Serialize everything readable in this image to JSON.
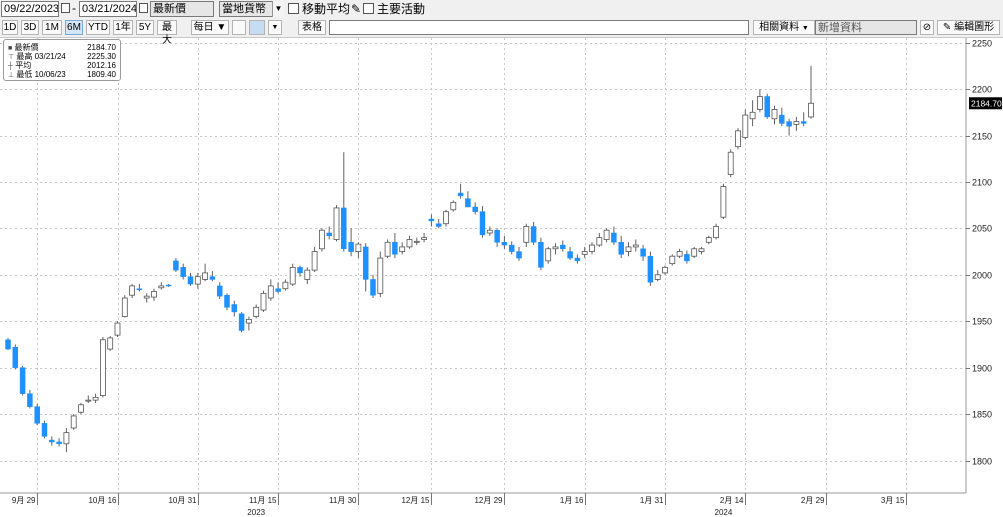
{
  "toolbar": {
    "start_date": "09/22/2023",
    "end_date": "03/21/2024",
    "price_field": "最新價",
    "currency": "當地貨幣",
    "moving_avg_label": "移動平均",
    "key_events_label": "主要活動",
    "periods": [
      {
        "label": "1D",
        "selected": false
      },
      {
        "label": "3D",
        "selected": false
      },
      {
        "label": "1M",
        "selected": false
      },
      {
        "label": "6M",
        "selected": true
      },
      {
        "label": "YTD",
        "selected": false
      },
      {
        "label": "1年",
        "selected": false
      },
      {
        "label": "5Y",
        "selected": false
      },
      {
        "label": "最大",
        "selected": false
      }
    ],
    "frequency": "每日 ▼",
    "table_label": "表格",
    "related_label": "相關資料",
    "news_label": "新增資料",
    "edit_label": "編輯圖形"
  },
  "legend": {
    "rows": [
      {
        "icon": "last-price-icon",
        "label": "最新價",
        "date": "",
        "value": "2184.70"
      },
      {
        "icon": "high-icon",
        "label": "最高",
        "date": "03/21/24",
        "value": "2225.30"
      },
      {
        "icon": "average-icon",
        "label": "平均",
        "date": "",
        "value": "2012.16"
      },
      {
        "icon": "low-icon",
        "label": "最低",
        "date": "10/06/23",
        "value": "1809.40"
      }
    ]
  },
  "chart_data": {
    "type": "candlestick",
    "ylim": [
      1765,
      2255
    ],
    "y_ticks": [
      1800,
      1850,
      1900,
      1950,
      2000,
      2050,
      2100,
      2150,
      2200,
      2250
    ],
    "last_price_label": "2184.70",
    "x_ticks": [
      {
        "index": 4,
        "label": "9月 29"
      },
      {
        "index": 15,
        "label": "10月 16"
      },
      {
        "index": 26,
        "label": "10月 31"
      },
      {
        "index": 37,
        "label": "11月 15"
      },
      {
        "index": 48,
        "label": "11月 30"
      },
      {
        "index": 58,
        "label": "12月 15"
      },
      {
        "index": 68,
        "label": "12月 29"
      },
      {
        "index": 79,
        "label": "1月 16"
      },
      {
        "index": 90,
        "label": "1月 31"
      },
      {
        "index": 101,
        "label": "2月 14"
      },
      {
        "index": 112,
        "label": "2月 29"
      },
      {
        "index": 123,
        "label": "3月 15"
      }
    ],
    "year_labels": [
      {
        "index": 34,
        "label": "2023"
      },
      {
        "index": 98,
        "label": "2024"
      }
    ],
    "colors": {
      "up": "#ffffff",
      "down": "#1e90ff",
      "wick": "#606060",
      "grid": "#c8c8c8",
      "last_price_bg": "#000000"
    },
    "candles": [
      [
        1930,
        1932,
        1919,
        1920
      ],
      [
        1922,
        1925,
        1898,
        1900
      ],
      [
        1900,
        1902,
        1870,
        1872
      ],
      [
        1872,
        1876,
        1856,
        1858
      ],
      [
        1858,
        1861,
        1838,
        1840
      ],
      [
        1840,
        1843,
        1824,
        1826
      ],
      [
        1822,
        1826,
        1816,
        1820
      ],
      [
        1820,
        1824,
        1815,
        1818
      ],
      [
        1818,
        1835,
        1809,
        1830
      ],
      [
        1835,
        1850,
        1833,
        1848
      ],
      [
        1852,
        1862,
        1850,
        1860
      ],
      [
        1864,
        1870,
        1862,
        1865
      ],
      [
        1865,
        1872,
        1862,
        1868
      ],
      [
        1870,
        1933,
        1868,
        1930
      ],
      [
        1920,
        1934,
        1918,
        1932
      ],
      [
        1935,
        1950,
        1933,
        1948
      ],
      [
        1955,
        1978,
        1954,
        1975
      ],
      [
        1978,
        1990,
        1975,
        1988
      ],
      [
        1985,
        1990,
        1982,
        1984
      ],
      [
        1975,
        1980,
        1970,
        1977
      ],
      [
        1976,
        1985,
        1972,
        1982
      ],
      [
        1986,
        1992,
        1984,
        1988
      ],
      [
        1989,
        1990,
        1987,
        1988
      ],
      [
        2015,
        2018,
        2003,
        2005
      ],
      [
        2008,
        2012,
        1995,
        1998
      ],
      [
        1998,
        2002,
        1988,
        1990
      ],
      [
        1990,
        2002,
        1985,
        1998
      ],
      [
        1995,
        2012,
        1993,
        2002
      ],
      [
        1998,
        2004,
        1993,
        1995
      ],
      [
        1988,
        1992,
        1974,
        1977
      ],
      [
        1978,
        1980,
        1962,
        1965
      ],
      [
        1968,
        1972,
        1955,
        1960
      ],
      [
        1958,
        1960,
        1938,
        1940
      ],
      [
        1948,
        1955,
        1940,
        1952
      ],
      [
        1955,
        1968,
        1953,
        1965
      ],
      [
        1962,
        1983,
        1960,
        1980
      ],
      [
        1975,
        1995,
        1972,
        1988
      ],
      [
        1985,
        1992,
        1980,
        1982
      ],
      [
        1985,
        1995,
        1983,
        1992
      ],
      [
        1990,
        2012,
        1988,
        2008
      ],
      [
        2008,
        2010,
        1998,
        2002
      ],
      [
        1995,
        2008,
        1990,
        2005
      ],
      [
        2005,
        2030,
        2003,
        2025
      ],
      [
        2028,
        2050,
        2025,
        2048
      ],
      [
        2045,
        2052,
        2038,
        2042
      ],
      [
        2038,
        2075,
        2036,
        2072
      ],
      [
        2072,
        2132,
        2025,
        2028
      ],
      [
        2035,
        2050,
        2020,
        2025
      ],
      [
        2025,
        2035,
        2018,
        2033
      ],
      [
        2030,
        2034,
        1982,
        1995
      ],
      [
        1995,
        2000,
        1975,
        1978
      ],
      [
        1980,
        2025,
        1976,
        2018
      ],
      [
        2020,
        2038,
        2018,
        2035
      ],
      [
        2035,
        2045,
        2018,
        2022
      ],
      [
        2025,
        2035,
        2022,
        2030
      ],
      [
        2030,
        2042,
        2028,
        2038
      ],
      [
        2035,
        2040,
        2032,
        2036
      ],
      [
        2038,
        2045,
        2035,
        2040
      ],
      [
        2060,
        2065,
        2052,
        2058
      ],
      [
        2055,
        2060,
        2050,
        2052
      ],
      [
        2055,
        2070,
        2052,
        2068
      ],
      [
        2070,
        2080,
        2068,
        2078
      ],
      [
        2088,
        2098,
        2082,
        2085
      ],
      [
        2082,
        2090,
        2076,
        2073
      ],
      [
        2073,
        2078,
        2065,
        2068
      ],
      [
        2068,
        2074,
        2040,
        2043
      ],
      [
        2045,
        2052,
        2042,
        2048
      ],
      [
        2048,
        2050,
        2030,
        2035
      ],
      [
        2035,
        2042,
        2028,
        2032
      ],
      [
        2032,
        2036,
        2022,
        2025
      ],
      [
        2025,
        2030,
        2015,
        2018
      ],
      [
        2035,
        2055,
        2030,
        2052
      ],
      [
        2052,
        2057,
        2032,
        2035
      ],
      [
        2035,
        2040,
        2005,
        2008
      ],
      [
        2015,
        2030,
        2012,
        2028
      ],
      [
        2028,
        2034,
        2022,
        2030
      ],
      [
        2032,
        2037,
        2025,
        2028
      ],
      [
        2025,
        2030,
        2016,
        2018
      ],
      [
        2018,
        2022,
        2012,
        2015
      ],
      [
        2022,
        2030,
        2018,
        2025
      ],
      [
        2025,
        2035,
        2022,
        2032
      ],
      [
        2032,
        2045,
        2030,
        2040
      ],
      [
        2038,
        2050,
        2035,
        2048
      ],
      [
        2045,
        2052,
        2032,
        2035
      ],
      [
        2035,
        2042,
        2018,
        2022
      ],
      [
        2025,
        2035,
        2020,
        2030
      ],
      [
        2030,
        2038,
        2025,
        2032
      ],
      [
        2028,
        2032,
        2015,
        2020
      ],
      [
        2020,
        2025,
        1988,
        1992
      ],
      [
        1995,
        2005,
        1993,
        2000
      ],
      [
        2002,
        2010,
        2000,
        2008
      ],
      [
        2012,
        2022,
        2010,
        2020
      ],
      [
        2020,
        2028,
        2018,
        2025
      ],
      [
        2022,
        2026,
        2012,
        2015
      ],
      [
        2020,
        2030,
        2018,
        2028
      ],
      [
        2025,
        2030,
        2022,
        2028
      ],
      [
        2035,
        2042,
        2033,
        2040
      ],
      [
        2040,
        2055,
        2038,
        2052
      ],
      [
        2062,
        2098,
        2060,
        2095
      ],
      [
        2108,
        2135,
        2105,
        2132
      ],
      [
        2138,
        2158,
        2135,
        2155
      ],
      [
        2148,
        2178,
        2146,
        2172
      ],
      [
        2168,
        2188,
        2160,
        2175
      ],
      [
        2178,
        2200,
        2175,
        2192
      ],
      [
        2192,
        2195,
        2168,
        2170
      ],
      [
        2168,
        2182,
        2162,
        2178
      ],
      [
        2172,
        2180,
        2160,
        2163
      ],
      [
        2165,
        2168,
        2150,
        2160
      ],
      [
        2162,
        2170,
        2155,
        2165
      ],
      [
        2165,
        2175,
        2160,
        2163
      ],
      [
        2170,
        2225,
        2168,
        2184.7
      ]
    ]
  }
}
